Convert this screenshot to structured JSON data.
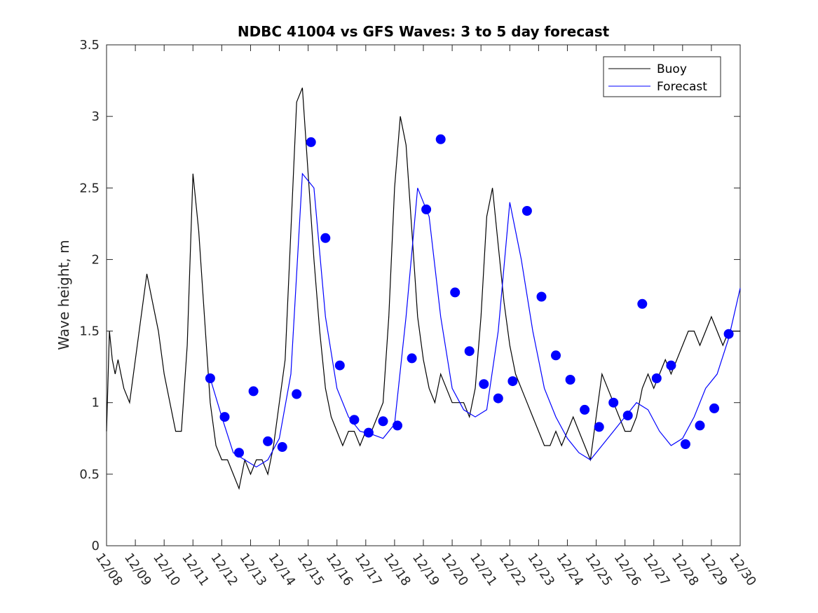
{
  "chart_data": {
    "type": "line",
    "title": "NDBC 41004 vs GFS Waves: 3 to 5 day forecast",
    "xlabel": "",
    "ylabel": "Wave height, m",
    "ylim": [
      0,
      3.5
    ],
    "xlim": [
      0,
      22
    ],
    "yticks": [
      "0",
      "0.5",
      "1",
      "1.5",
      "2",
      "2.5",
      "3",
      "3.5"
    ],
    "categories": [
      "12/08",
      "12/09",
      "12/10",
      "12/11",
      "12/12",
      "12/13",
      "12/14",
      "12/15",
      "12/16",
      "12/17",
      "12/18",
      "12/19",
      "12/20",
      "12/21",
      "12/22",
      "12/23",
      "12/24",
      "12/25",
      "12/26",
      "12/27",
      "12/28",
      "12/29",
      "12/30"
    ],
    "legend": {
      "position": "top-right",
      "entries": [
        "Buoy",
        "Forecast"
      ]
    },
    "colors": {
      "buoy": "#000000",
      "forecast": "#0000ff",
      "marker": "#0000ff"
    },
    "series": [
      {
        "name": "Buoy",
        "x": [
          0,
          0.1,
          0.2,
          0.3,
          0.4,
          0.5,
          0.6,
          0.8,
          1.0,
          1.2,
          1.4,
          1.6,
          1.8,
          2.0,
          2.2,
          2.4,
          2.6,
          2.8,
          3.0,
          3.2,
          3.4,
          3.5,
          3.6,
          3.8,
          4.0,
          4.2,
          4.4,
          4.6,
          4.8,
          5.0,
          5.2,
          5.4,
          5.6,
          5.8,
          6.0,
          6.2,
          6.4,
          6.6,
          6.8,
          7.0,
          7.2,
          7.4,
          7.6,
          7.8,
          8.0,
          8.2,
          8.4,
          8.6,
          8.8,
          9.0,
          9.2,
          9.4,
          9.6,
          9.8,
          10.0,
          10.2,
          10.4,
          10.6,
          10.8,
          11.0,
          11.2,
          11.4,
          11.6,
          11.8,
          12.0,
          12.2,
          12.4,
          12.6,
          12.8,
          13.0,
          13.2,
          13.4,
          13.6,
          13.8,
          14.0,
          14.2,
          14.4,
          14.6,
          14.8,
          15.0,
          15.2,
          15.4,
          15.6,
          15.8,
          16.0,
          16.2,
          16.4,
          16.6,
          16.8,
          17.0,
          17.2,
          17.4,
          17.6,
          17.8,
          18.0,
          18.2,
          18.4,
          18.6,
          18.8,
          19.0,
          19.2,
          19.4,
          19.6,
          19.8,
          20.0,
          20.2,
          20.4,
          20.6,
          20.8,
          21.0,
          21.2,
          21.4,
          21.6,
          21.8,
          22.0
        ],
        "values": [
          0.8,
          1.5,
          1.3,
          1.2,
          1.3,
          1.2,
          1.1,
          1.0,
          1.3,
          1.6,
          1.9,
          1.7,
          1.5,
          1.2,
          1.0,
          0.8,
          0.8,
          1.4,
          2.6,
          2.2,
          1.6,
          1.3,
          1.0,
          0.7,
          0.6,
          0.6,
          0.5,
          0.4,
          0.6,
          0.5,
          0.6,
          0.6,
          0.5,
          0.7,
          1.0,
          1.3,
          2.2,
          3.1,
          3.2,
          2.6,
          2.0,
          1.5,
          1.1,
          0.9,
          0.8,
          0.7,
          0.8,
          0.8,
          0.7,
          0.8,
          0.8,
          0.9,
          1.0,
          1.6,
          2.5,
          3.0,
          2.8,
          2.2,
          1.6,
          1.3,
          1.1,
          1.0,
          1.2,
          1.1,
          1.0,
          1.0,
          1.0,
          0.9,
          1.1,
          1.6,
          2.3,
          2.5,
          2.1,
          1.7,
          1.4,
          1.2,
          1.1,
          1.0,
          0.9,
          0.8,
          0.7,
          0.7,
          0.8,
          0.7,
          0.8,
          0.9,
          0.8,
          0.7,
          0.6,
          0.9,
          1.2,
          1.1,
          1.0,
          0.9,
          0.8,
          0.8,
          0.9,
          1.1,
          1.2,
          1.1,
          1.2,
          1.3,
          1.2,
          1.3,
          1.4,
          1.5,
          1.5,
          1.4,
          1.5,
          1.6,
          1.5,
          1.4,
          1.5,
          1.5,
          1.5
        ]
      },
      {
        "name": "Forecast",
        "x": [
          3.6,
          4.0,
          4.4,
          4.8,
          5.2,
          5.6,
          6.0,
          6.4,
          6.8,
          7.2,
          7.6,
          8.0,
          8.4,
          8.8,
          9.2,
          9.6,
          10.0,
          10.4,
          10.8,
          11.2,
          11.6,
          12.0,
          12.4,
          12.8,
          13.2,
          13.6,
          14.0,
          14.4,
          14.8,
          15.2,
          15.6,
          16.0,
          16.4,
          16.8,
          17.2,
          17.6,
          18.0,
          18.4,
          18.8,
          19.2,
          19.6,
          20.0,
          20.4,
          20.8,
          21.2,
          21.6,
          22.0
        ],
        "values": [
          1.17,
          0.9,
          0.65,
          0.6,
          0.55,
          0.6,
          0.75,
          1.2,
          2.6,
          2.5,
          1.6,
          1.1,
          0.9,
          0.8,
          0.78,
          0.75,
          0.85,
          1.6,
          2.5,
          2.3,
          1.6,
          1.1,
          0.95,
          0.9,
          0.95,
          1.5,
          2.4,
          2.0,
          1.5,
          1.1,
          0.9,
          0.75,
          0.65,
          0.6,
          0.7,
          0.8,
          0.9,
          1.0,
          0.95,
          0.8,
          0.7,
          0.75,
          0.9,
          1.1,
          1.2,
          1.45,
          1.8
        ]
      },
      {
        "name": "Forecast markers",
        "x": [
          3.6,
          4.1,
          4.6,
          5.1,
          5.6,
          6.1,
          6.6,
          7.1,
          7.6,
          8.1,
          8.6,
          9.1,
          9.6,
          10.1,
          10.6,
          11.1,
          11.6,
          12.1,
          12.6,
          13.1,
          13.6,
          14.1,
          14.6,
          15.1,
          15.6,
          16.1,
          16.6,
          17.1,
          17.6,
          18.1,
          18.6,
          19.1,
          19.6,
          20.1,
          20.6,
          21.1,
          21.6
        ],
        "values": [
          1.17,
          0.9,
          0.65,
          1.08,
          0.73,
          0.69,
          1.06,
          2.82,
          2.15,
          1.26,
          0.88,
          0.79,
          0.87,
          0.84,
          1.31,
          2.35,
          2.84,
          1.77,
          1.36,
          1.13,
          1.03,
          1.15,
          2.34,
          1.74,
          1.33,
          1.16,
          0.95,
          0.83,
          1.0,
          0.91,
          1.69,
          1.17,
          1.26,
          0.71,
          0.84,
          0.96,
          1.48
        ]
      }
    ]
  }
}
